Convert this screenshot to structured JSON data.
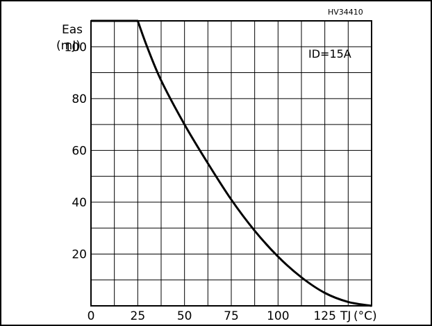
{
  "chart_data": {
    "type": "line",
    "figure_code": "HV34410",
    "ylabel": "Eas",
    "yunit": "(mJ)",
    "xlabel": "TJ",
    "xunit": "(°C)",
    "condition": "ID=15A",
    "xlim": [
      0,
      150
    ],
    "ylim": [
      0,
      110
    ],
    "grid": true,
    "x_ticks": [
      0,
      25,
      50,
      75,
      100,
      125
    ],
    "x_tick_labels": [
      "0",
      "25",
      "50",
      "75",
      "100",
      "125"
    ],
    "y_ticks": [
      20,
      40,
      60,
      80,
      100
    ],
    "y_tick_labels": [
      "20",
      "40",
      "60",
      "80",
      "100"
    ],
    "series": [
      {
        "x": [
          0,
          25,
          30,
          37.5,
          50,
          62.5,
          75,
          87.5,
          100,
          112.5,
          125,
          137.5,
          150
        ],
        "y": [
          110,
          110,
          100,
          87,
          70,
          55,
          41,
          29,
          19,
          11,
          5,
          1.5,
          0
        ]
      }
    ]
  }
}
